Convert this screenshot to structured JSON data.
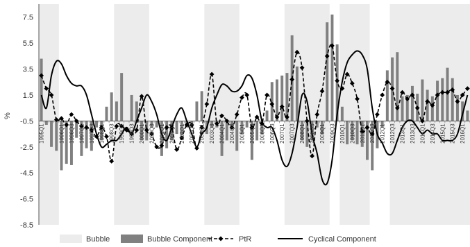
{
  "chart_data": {
    "type": "bar",
    "ylabel": "%",
    "ylim": [
      -8.5,
      8.5
    ],
    "y_ticks": [
      7.5,
      5.5,
      3.5,
      1.5,
      -0.5,
      -2.5,
      -4.5,
      -6.5,
      -8.5
    ],
    "y_tick_labels": [
      "7.5",
      "5.5",
      "3.5",
      "1.5",
      "-0.5",
      "-2.5",
      "-4.5",
      "-6.5",
      "-8.5"
    ],
    "categories": [
      "1995Q1",
      "1995Q2",
      "1995Q3",
      "1995Q4",
      "1996Q1",
      "1996Q2",
      "1996Q3",
      "1996Q4",
      "1997Q1",
      "1997Q2",
      "1997Q3",
      "1997Q4",
      "1998Q1",
      "1998Q2",
      "1998Q3",
      "1998Q4",
      "1999Q1",
      "1999Q2",
      "1999Q3",
      "1999Q4",
      "2000Q1",
      "2000Q2",
      "2000Q3",
      "2000Q4",
      "2001Q1",
      "2001Q2",
      "2001Q3",
      "2001Q4",
      "2002Q1",
      "2002Q2",
      "2002Q3",
      "2002Q4",
      "2003Q1",
      "2003Q2",
      "2003Q3",
      "2003Q4",
      "2004Q1",
      "2004Q2",
      "2004Q3",
      "2004Q4",
      "2005Q1",
      "2005Q2",
      "2005Q3",
      "2005Q4",
      "2006Q1",
      "2006Q2",
      "2006Q3",
      "2006Q4",
      "2007Q1",
      "2007Q2",
      "2007Q3",
      "2007Q4",
      "2008Q1",
      "2008Q2",
      "2008Q3",
      "2008Q4",
      "2009Q1",
      "2009Q2",
      "2009Q3",
      "2009Q4",
      "2010Q1",
      "2010Q2",
      "2010Q3",
      "2010Q4",
      "2011Q1",
      "2011Q2",
      "2011Q3",
      "2011Q4",
      "2012Q1",
      "2012Q2",
      "2012Q3",
      "2012Q4",
      "2013Q1",
      "2013Q2",
      "2013Q3",
      "2013Q4",
      "2014Q1",
      "2014Q2",
      "2014Q3",
      "2014Q4",
      "2015Q1",
      "2015Q2",
      "2015Q3",
      "2015Q4",
      "2016Q1",
      "2016Q2"
    ],
    "x_tick_labels": [
      "1995Q1",
      "1996Q1",
      "1996Q3",
      "1997Q1",
      "1997Q3",
      "1998Q1",
      "1998Q3",
      "1999Q1",
      "1999Q3",
      "2000Q1",
      "2000Q3",
      "2001Q1",
      "2001Q3",
      "2002Q1",
      "2002Q3",
      "2003Q1",
      "2003Q3",
      "2004Q1",
      "2004Q3",
      "2005Q1",
      "2005Q3",
      "2006Q1",
      "2006Q3",
      "2007Q1",
      "2007Q3",
      "2008Q1",
      "2008Q3",
      "2009Q1",
      "2009Q3",
      "2010Q1",
      "2010Q3",
      "2011Q1",
      "2011Q3",
      "2012Q1",
      "2012Q3",
      "2013Q1",
      "2013Q3",
      "2014Q1",
      "2014Q3",
      "2015Q1",
      "2015Q3",
      "2016Q1"
    ],
    "bubble_periods": [
      {
        "start": "1995Q1",
        "end": "1995Q4"
      },
      {
        "start": "1998Q4",
        "end": "2000Q2"
      },
      {
        "start": "2003Q2",
        "end": "2004Q4"
      },
      {
        "start": "2007Q2",
        "end": "2009Q2"
      },
      {
        "start": "2010Q1",
        "end": "2011Q2"
      },
      {
        "start": "2012Q3",
        "end": "2016Q2"
      }
    ],
    "series": [
      {
        "name": "Bubble Component",
        "type": "bar",
        "color": "#808080",
        "values": [
          4.3,
          -0.8,
          -2.5,
          -2.8,
          -4.3,
          -3.8,
          -3.9,
          -1.8,
          -3.2,
          -2.6,
          -2.8,
          -1.0,
          -2.0,
          0.6,
          1.7,
          1.0,
          3.2,
          -0.5,
          1.5,
          1.0,
          -2.0,
          -2.0,
          -1.0,
          -1.0,
          -3.2,
          -2.6,
          -2.0,
          -1.5,
          -1.6,
          -1.0,
          -1.0,
          1.0,
          1.8,
          -1.5,
          -1.0,
          -1.0,
          -3.2,
          -2.0,
          -1.0,
          -2.8,
          -1.5,
          -1.0,
          -3.5,
          -2.0,
          -1.5,
          0.3,
          2.5,
          2.7,
          3.0,
          3.2,
          6.1,
          3.7,
          -2.0,
          -2.5,
          -2.0,
          -1.0,
          -1.5,
          7.1,
          7.7,
          5.4,
          0.6,
          -2.3,
          -2.0,
          -2.3,
          -2.5,
          -3.5,
          -4.3,
          -2.6,
          -1.0,
          3.4,
          4.4,
          4.8,
          1.4,
          1.5,
          2.2,
          1.6,
          2.7,
          1.9,
          1.4,
          2.6,
          2.8,
          3.6,
          2.8,
          1.5,
          1.0,
          0.3
        ]
      },
      {
        "name": "PtR",
        "type": "line",
        "style": "dashed-diamond",
        "color": "#000000",
        "values": [
          3.0,
          2.0,
          1.5,
          -0.4,
          -0.3,
          -0.8,
          0.0,
          -0.5,
          -0.9,
          -1.0,
          -1.2,
          -1.7,
          -1.0,
          -1.7,
          -3.6,
          -0.9,
          -0.9,
          -1.2,
          -1.5,
          -1.2,
          1.4,
          -1.2,
          -1.5,
          -2.5,
          -2.4,
          -1.0,
          -1.0,
          -2.7,
          -1.8,
          -0.8,
          -0.8,
          -2.6,
          -1.0,
          0.8,
          3.1,
          -0.7,
          -0.1,
          -0.5,
          -1.0,
          0.0,
          1.3,
          1.5,
          -1.0,
          -0.2,
          -0.7,
          1.5,
          0.8,
          -0.2,
          0.6,
          -0.2,
          2.7,
          4.8,
          3.6,
          -0.5,
          -3.2,
          0.0,
          1.8,
          4.5,
          5.3,
          2.6,
          2.0,
          3.1,
          2.4,
          1.2,
          -1.3,
          -1.0,
          -1.5,
          0.0,
          1.5,
          2.5,
          2.0,
          0.5,
          1.7,
          1.2,
          1.5,
          0.5,
          -0.5,
          1.0,
          0.7,
          1.5,
          1.7,
          1.7,
          1.9,
          1.0,
          1.5,
          2.0
        ]
      },
      {
        "name": "Cyclical Component",
        "type": "line",
        "style": "solid",
        "color": "#000000",
        "values": [
          1.5,
          0.5,
          3.0,
          4.1,
          3.9,
          3.0,
          2.4,
          2.2,
          2.2,
          1.5,
          0.0,
          -1.5,
          -2.5,
          -2.3,
          -2.0,
          -2.0,
          -1.5,
          -1.0,
          -1.5,
          -0.5,
          0.5,
          1.5,
          1.0,
          0.0,
          -1.5,
          -2.0,
          -1.0,
          0.0,
          0.5,
          -0.5,
          -1.5,
          -2.5,
          -1.5,
          -1.0,
          0.5,
          1.5,
          2.3,
          2.2,
          1.8,
          1.8,
          2.2,
          3.0,
          2.8,
          1.5,
          -0.5,
          -1.0,
          -1.0,
          -2.0,
          -3.5,
          -4.0,
          -3.0,
          -1.0,
          1.5,
          1.0,
          -1.5,
          -3.0,
          -5.0,
          -5.3,
          -3.5,
          0.0,
          2.5,
          4.0,
          4.6,
          4.9,
          4.6,
          3.5,
          0.5,
          -1.5,
          -2.2,
          -3.0,
          -3.0,
          -2.0,
          -1.0,
          -0.5,
          -0.5,
          -1.0,
          -1.5,
          -1.2,
          -1.5,
          -1.5,
          -2.0,
          -2.0,
          -2.0,
          -1.5,
          0.0,
          1.5
        ]
      }
    ],
    "legend": [
      {
        "label": "Bubble",
        "swatch": "light-gray-box"
      },
      {
        "label": "Bubble Component",
        "swatch": "dark-gray-box"
      },
      {
        "label": "PtR",
        "swatch": "dashed-diamond-line"
      },
      {
        "label": "Cyclical Component",
        "swatch": "solid-line"
      }
    ],
    "legend_position": "bottom",
    "grid": false,
    "colors": {
      "bubble_shade": "#ececec",
      "bar": "#808080",
      "line": "#000000"
    }
  }
}
